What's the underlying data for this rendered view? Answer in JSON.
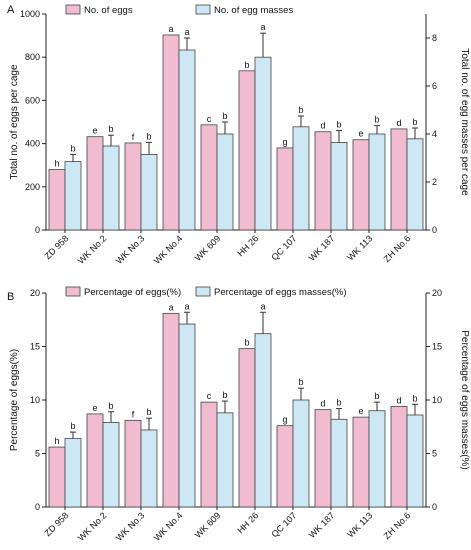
{
  "chart_data": [
    {
      "type": "bar",
      "panel_label": "A",
      "categories": [
        "ZD 958",
        "WK No.2",
        "WK No.3",
        "WK No.4",
        "WK 609",
        "HH 26",
        "QC 107",
        "WK 187",
        "WK 113",
        "ZH No.6"
      ],
      "ylabel_left": "Total no. of eggs per cage",
      "ylabel_right": "Total no. of egg masses per cage",
      "ylim_left": [
        0,
        1000
      ],
      "yticks_left": [
        0,
        200,
        400,
        600,
        800,
        1000
      ],
      "ylim_right": [
        0,
        9
      ],
      "yticks_right": [
        0,
        2,
        4,
        6,
        8
      ],
      "legend_position": "top-left",
      "series": [
        {
          "name": "No. of eggs",
          "axis": "left",
          "color": "#f2bcd0",
          "values": [
            280,
            432,
            403,
            903,
            487,
            737,
            380,
            455,
            418,
            468
          ],
          "errors": [
            0,
            0,
            0,
            0,
            0,
            0,
            0,
            0,
            0,
            0
          ],
          "labels": [
            "h",
            "e",
            "f",
            "a",
            "c",
            "b",
            "g",
            "d",
            "e",
            "d"
          ]
        },
        {
          "name": "No. of egg masses",
          "axis": "right",
          "color": "#cde7f5",
          "values": [
            2.85,
            3.5,
            3.15,
            7.5,
            4.0,
            7.2,
            4.3,
            3.65,
            4.0,
            3.8
          ],
          "errors": [
            0.3,
            0.45,
            0.5,
            0.5,
            0.5,
            1.0,
            0.45,
            0.5,
            0.35,
            0.45
          ],
          "labels": [
            "b",
            "b",
            "b",
            "a",
            "b",
            "a",
            "b",
            "b",
            "b",
            "b"
          ]
        }
      ]
    },
    {
      "type": "bar",
      "panel_label": "B",
      "categories": [
        "ZD 958",
        "WK No.2",
        "WK No.3",
        "WK No.4",
        "WK 609",
        "HH 26",
        "QC 107",
        "WK 187",
        "WK 113",
        "ZH No.6"
      ],
      "ylabel_left": "Percentage of eggs(%)",
      "ylabel_right": "Percentage of eggs masses(%)",
      "ylim_left": [
        0,
        20
      ],
      "yticks_left": [
        0,
        5,
        10,
        15,
        20
      ],
      "ylim_right": [
        0,
        20
      ],
      "yticks_right": [
        0,
        5,
        10,
        15,
        20
      ],
      "legend_position": "top-left",
      "series": [
        {
          "name": "Percentage of eggs(%)",
          "axis": "left",
          "color": "#f2bcd0",
          "values": [
            5.6,
            8.7,
            8.1,
            18.1,
            9.8,
            14.8,
            7.6,
            9.1,
            8.4,
            9.4
          ],
          "errors": [
            0,
            0,
            0,
            0,
            0,
            0,
            0,
            0,
            0,
            0
          ],
          "labels": [
            "h",
            "e",
            "f",
            "a",
            "c",
            "b",
            "g",
            "d",
            "e",
            "d"
          ]
        },
        {
          "name": "Percentage of eggs masses(%)",
          "axis": "right",
          "color": "#cde7f5",
          "values": [
            6.4,
            7.9,
            7.2,
            17.1,
            8.8,
            16.2,
            10.0,
            8.2,
            9.0,
            8.6
          ],
          "errors": [
            0.6,
            1.0,
            1.1,
            1.1,
            1.1,
            2.0,
            1.1,
            1.0,
            0.8,
            1.0
          ],
          "labels": [
            "b",
            "b",
            "b",
            "a",
            "b",
            "a",
            "b",
            "b",
            "b",
            "b"
          ]
        }
      ]
    }
  ]
}
